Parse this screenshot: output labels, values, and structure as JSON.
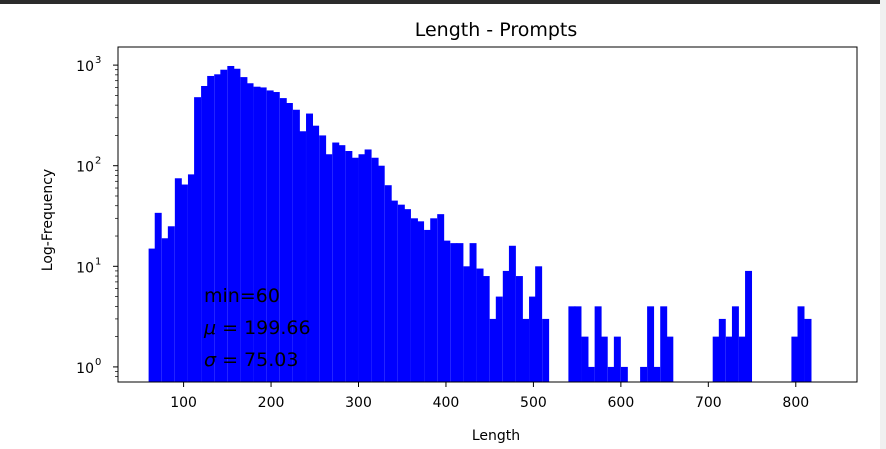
{
  "chart_data": {
    "type": "bar",
    "title": "Length - Prompts",
    "xlabel": "Length",
    "ylabel": "Log-Frequency",
    "xlim": [
      25,
      870
    ],
    "ylim_log10": [
      -0.15,
      3.18
    ],
    "y_scale": "log",
    "bar_color": "#0000ff",
    "xticks": [
      {
        "value": 100,
        "label": "100"
      },
      {
        "value": 200,
        "label": "200"
      },
      {
        "value": 300,
        "label": "300"
      },
      {
        "value": 400,
        "label": "400"
      },
      {
        "value": 500,
        "label": "500"
      },
      {
        "value": 600,
        "label": "600"
      },
      {
        "value": 700,
        "label": "700"
      },
      {
        "value": 800,
        "label": "800"
      }
    ],
    "yticks": [
      {
        "exp": 0,
        "base": "10",
        "sup": "0"
      },
      {
        "exp": 1,
        "base": "10",
        "sup": "1"
      },
      {
        "exp": 2,
        "base": "10",
        "sup": "2"
      },
      {
        "exp": 3,
        "base": "10",
        "sup": "3"
      }
    ],
    "annotation": {
      "min_text": "min=60",
      "mu_symbol": "μ",
      "mu_text": " = 199.66",
      "sigma_symbol": "σ",
      "sigma_text": " = 75.03"
    },
    "bins": [
      {
        "x": 60,
        "y": 15
      },
      {
        "x": 67,
        "y": 34
      },
      {
        "x": 75,
        "y": 19
      },
      {
        "x": 82,
        "y": 25
      },
      {
        "x": 90,
        "y": 75
      },
      {
        "x": 97,
        "y": 65
      },
      {
        "x": 105,
        "y": 82
      },
      {
        "x": 112,
        "y": 480
      },
      {
        "x": 120,
        "y": 620
      },
      {
        "x": 127,
        "y": 780
      },
      {
        "x": 135,
        "y": 810
      },
      {
        "x": 142,
        "y": 900
      },
      {
        "x": 150,
        "y": 980
      },
      {
        "x": 157,
        "y": 920
      },
      {
        "x": 165,
        "y": 760
      },
      {
        "x": 172,
        "y": 660
      },
      {
        "x": 180,
        "y": 610
      },
      {
        "x": 187,
        "y": 600
      },
      {
        "x": 195,
        "y": 560
      },
      {
        "x": 202,
        "y": 540
      },
      {
        "x": 210,
        "y": 470
      },
      {
        "x": 217,
        "y": 420
      },
      {
        "x": 225,
        "y": 360
      },
      {
        "x": 232,
        "y": 220
      },
      {
        "x": 240,
        "y": 330
      },
      {
        "x": 247,
        "y": 250
      },
      {
        "x": 255,
        "y": 200
      },
      {
        "x": 262,
        "y": 130
      },
      {
        "x": 270,
        "y": 170
      },
      {
        "x": 277,
        "y": 160
      },
      {
        "x": 285,
        "y": 140
      },
      {
        "x": 292,
        "y": 120
      },
      {
        "x": 300,
        "y": 130
      },
      {
        "x": 307,
        "y": 145
      },
      {
        "x": 315,
        "y": 120
      },
      {
        "x": 322,
        "y": 100
      },
      {
        "x": 330,
        "y": 64
      },
      {
        "x": 337,
        "y": 45
      },
      {
        "x": 345,
        "y": 41
      },
      {
        "x": 352,
        "y": 37
      },
      {
        "x": 360,
        "y": 30
      },
      {
        "x": 367,
        "y": 28
      },
      {
        "x": 375,
        "y": 23
      },
      {
        "x": 382,
        "y": 30
      },
      {
        "x": 390,
        "y": 33
      },
      {
        "x": 397,
        "y": 18
      },
      {
        "x": 405,
        "y": 17
      },
      {
        "x": 412,
        "y": 17
      },
      {
        "x": 420,
        "y": 10
      },
      {
        "x": 427,
        "y": 17
      },
      {
        "x": 435,
        "y": 9.5
      },
      {
        "x": 442,
        "y": 8
      },
      {
        "x": 450,
        "y": 3
      },
      {
        "x": 457,
        "y": 5
      },
      {
        "x": 465,
        "y": 9
      },
      {
        "x": 472,
        "y": 16
      },
      {
        "x": 480,
        "y": 8
      },
      {
        "x": 487,
        "y": 3
      },
      {
        "x": 495,
        "y": 5
      },
      {
        "x": 502,
        "y": 10
      },
      {
        "x": 510,
        "y": 3
      },
      {
        "x": 517,
        "y": 0
      },
      {
        "x": 525,
        "y": 0
      },
      {
        "x": 532,
        "y": 0
      },
      {
        "x": 540,
        "y": 4
      },
      {
        "x": 547,
        "y": 4
      },
      {
        "x": 555,
        "y": 2
      },
      {
        "x": 562,
        "y": 1
      },
      {
        "x": 570,
        "y": 4
      },
      {
        "x": 577,
        "y": 2
      },
      {
        "x": 585,
        "y": 1
      },
      {
        "x": 592,
        "y": 2
      },
      {
        "x": 600,
        "y": 1
      },
      {
        "x": 607,
        "y": 0
      },
      {
        "x": 615,
        "y": 0
      },
      {
        "x": 622,
        "y": 1
      },
      {
        "x": 630,
        "y": 4
      },
      {
        "x": 637,
        "y": 1
      },
      {
        "x": 645,
        "y": 4
      },
      {
        "x": 652,
        "y": 2
      },
      {
        "x": 660,
        "y": 0
      },
      {
        "x": 667,
        "y": 0
      },
      {
        "x": 675,
        "y": 0
      },
      {
        "x": 682,
        "y": 0
      },
      {
        "x": 690,
        "y": 0
      },
      {
        "x": 697,
        "y": 0
      },
      {
        "x": 705,
        "y": 2
      },
      {
        "x": 712,
        "y": 3
      },
      {
        "x": 720,
        "y": 2
      },
      {
        "x": 727,
        "y": 4
      },
      {
        "x": 735,
        "y": 2
      },
      {
        "x": 742,
        "y": 9
      },
      {
        "x": 750,
        "y": 0
      },
      {
        "x": 757,
        "y": 0
      },
      {
        "x": 765,
        "y": 0
      },
      {
        "x": 772,
        "y": 0
      },
      {
        "x": 780,
        "y": 0
      },
      {
        "x": 787,
        "y": 0
      },
      {
        "x": 795,
        "y": 2
      },
      {
        "x": 802,
        "y": 4
      },
      {
        "x": 810,
        "y": 3
      }
    ],
    "bin_width": 7.5
  }
}
